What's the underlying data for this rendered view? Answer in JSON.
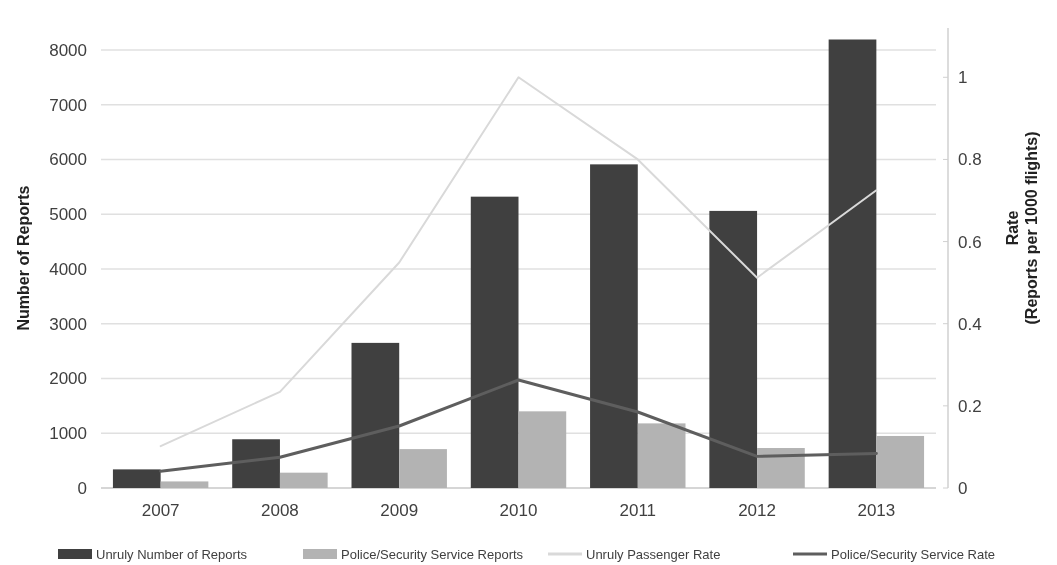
{
  "chart_data": {
    "type": "bar",
    "categories": [
      "2007",
      "2008",
      "2009",
      "2010",
      "2011",
      "2012",
      "2013"
    ],
    "ylabel": "Number of Reports",
    "y2label": "Rate\n(Reports per 1000 flights)",
    "ylim": [
      0,
      8400
    ],
    "yticks": [
      0,
      1000,
      2000,
      3000,
      4000,
      5000,
      6000,
      7000,
      8000
    ],
    "y2lim": [
      0,
      1.12
    ],
    "y2ticks": [
      0,
      0.2,
      0.4,
      0.6,
      0.8,
      1
    ],
    "grid": "y",
    "legend": "bottom",
    "series": [
      {
        "name": "Unruly Number of Reports",
        "color": "#404040",
        "values": [
          340,
          890,
          2650,
          5320,
          5910,
          5060,
          8190
        ]
      },
      {
        "name": "Police/Security Service Reports",
        "color": "#b3b3b3",
        "values": [
          120,
          280,
          710,
          1400,
          1180,
          730,
          950
        ]
      },
      {
        "name": "Unruly Passenger Rate",
        "type": "line",
        "axis": "y2",
        "color": "#d9d9d9",
        "values": [
          0.102,
          0.234,
          0.549,
          1.0,
          0.8,
          0.512,
          0.725
        ]
      },
      {
        "name": "Police/Security Service Rate",
        "type": "line",
        "axis": "y2",
        "color": "#5e5e5e",
        "values": [
          0.041,
          0.075,
          0.151,
          0.263,
          0.185,
          0.077,
          0.084
        ]
      }
    ]
  }
}
